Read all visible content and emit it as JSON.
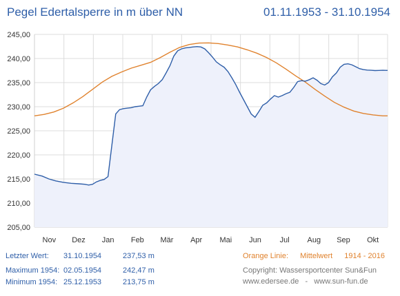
{
  "header": {
    "title": "Pegel Edertalsperre in m über NN",
    "period": "01.11.1953 - 31.10.1954"
  },
  "chart_data": {
    "type": "line",
    "ylim": [
      205,
      245
    ],
    "yticks": [
      "205,00",
      "210,00",
      "215,00",
      "220,00",
      "225,00",
      "230,00",
      "235,00",
      "240,00",
      "245,00"
    ],
    "ytick_values": [
      205,
      210,
      215,
      220,
      225,
      230,
      235,
      240,
      245
    ],
    "months": [
      "Nov",
      "Dez",
      "Jan",
      "Feb",
      "Mär",
      "Apr",
      "Mai",
      "Jun",
      "Jul",
      "Aug",
      "Sep",
      "Okt"
    ],
    "xlim": [
      0,
      365
    ],
    "grid": true,
    "series": [
      {
        "name": "1954",
        "color": "#2e5ea8",
        "fill": "#eef1fb",
        "x": [
          0,
          8,
          15,
          22,
          30,
          38,
          46,
          52,
          56,
          60,
          64,
          68,
          72,
          76,
          80,
          84,
          88,
          92,
          96,
          100,
          104,
          108,
          112,
          116,
          120,
          124,
          128,
          132,
          136,
          140,
          144,
          148,
          152,
          156,
          160,
          164,
          168,
          172,
          176,
          180,
          184,
          188,
          192,
          196,
          200,
          204,
          208,
          212,
          216,
          220,
          224,
          228,
          232,
          236,
          240,
          244,
          248,
          252,
          256,
          260,
          264,
          268,
          272,
          276,
          280,
          284,
          288,
          292,
          296,
          300,
          304,
          308,
          312,
          316,
          320,
          324,
          328,
          332,
          336,
          340,
          344,
          348,
          352,
          356,
          360,
          365
        ],
        "values": [
          216.0,
          215.6,
          215.0,
          214.6,
          214.3,
          214.1,
          214.0,
          213.9,
          213.75,
          213.9,
          214.4,
          214.7,
          214.9,
          215.5,
          222.0,
          228.5,
          229.4,
          229.6,
          229.7,
          229.8,
          230.0,
          230.1,
          230.2,
          232.0,
          233.5,
          234.2,
          234.8,
          235.6,
          237.0,
          238.5,
          240.5,
          241.6,
          242.0,
          242.2,
          242.3,
          242.4,
          242.47,
          242.4,
          242.0,
          241.2,
          240.3,
          239.3,
          238.7,
          238.2,
          237.3,
          236.0,
          234.6,
          233.0,
          231.5,
          230.0,
          228.5,
          227.8,
          229.0,
          230.3,
          230.8,
          231.6,
          232.3,
          232.0,
          232.3,
          232.7,
          233.0,
          234.0,
          235.2,
          235.4,
          235.3,
          235.6,
          236.0,
          235.5,
          234.8,
          234.5,
          235.0,
          236.2,
          237.0,
          238.2,
          238.8,
          238.9,
          238.7,
          238.3,
          237.9,
          237.7,
          237.6,
          237.55,
          237.5,
          237.53,
          237.55,
          237.53
        ]
      },
      {
        "name": "Mittelwert 1914 - 2016",
        "color": "#e0822d",
        "x": [
          0,
          10,
          20,
          30,
          40,
          50,
          60,
          70,
          80,
          90,
          100,
          110,
          120,
          130,
          140,
          150,
          160,
          170,
          180,
          190,
          200,
          210,
          220,
          230,
          240,
          250,
          260,
          270,
          280,
          290,
          300,
          310,
          320,
          330,
          340,
          350,
          360,
          365
        ],
        "values": [
          228.1,
          228.4,
          228.9,
          229.7,
          230.8,
          232.1,
          233.6,
          235.1,
          236.3,
          237.2,
          238.0,
          238.6,
          239.2,
          240.2,
          241.3,
          242.3,
          242.9,
          243.2,
          243.25,
          243.1,
          242.8,
          242.4,
          241.8,
          241.1,
          240.2,
          239.1,
          237.8,
          236.4,
          235.1,
          233.6,
          232.2,
          230.9,
          229.9,
          229.1,
          228.6,
          228.3,
          228.1,
          228.1
        ]
      }
    ]
  },
  "footer": {
    "last_label": "Letzter Wert:",
    "last_date": "31.10.1954",
    "last_value": "237,53 m",
    "max_label": "Maximum 1954:",
    "max_date": "02.05.1954",
    "max_value": "242,47 m",
    "min_label": "Minimum  1954:",
    "min_date": "25.12.1953",
    "min_value": "213,75 m",
    "orange_label": "Orange Linie:",
    "mittelwert_label": "Mittelwert",
    "mittelwert_range": "1914 - 2016",
    "copyright": "Copyright: Wassersportcenter Sun&Fun",
    "websites": "www.edersee.de   -   www.sun-fun.de"
  }
}
